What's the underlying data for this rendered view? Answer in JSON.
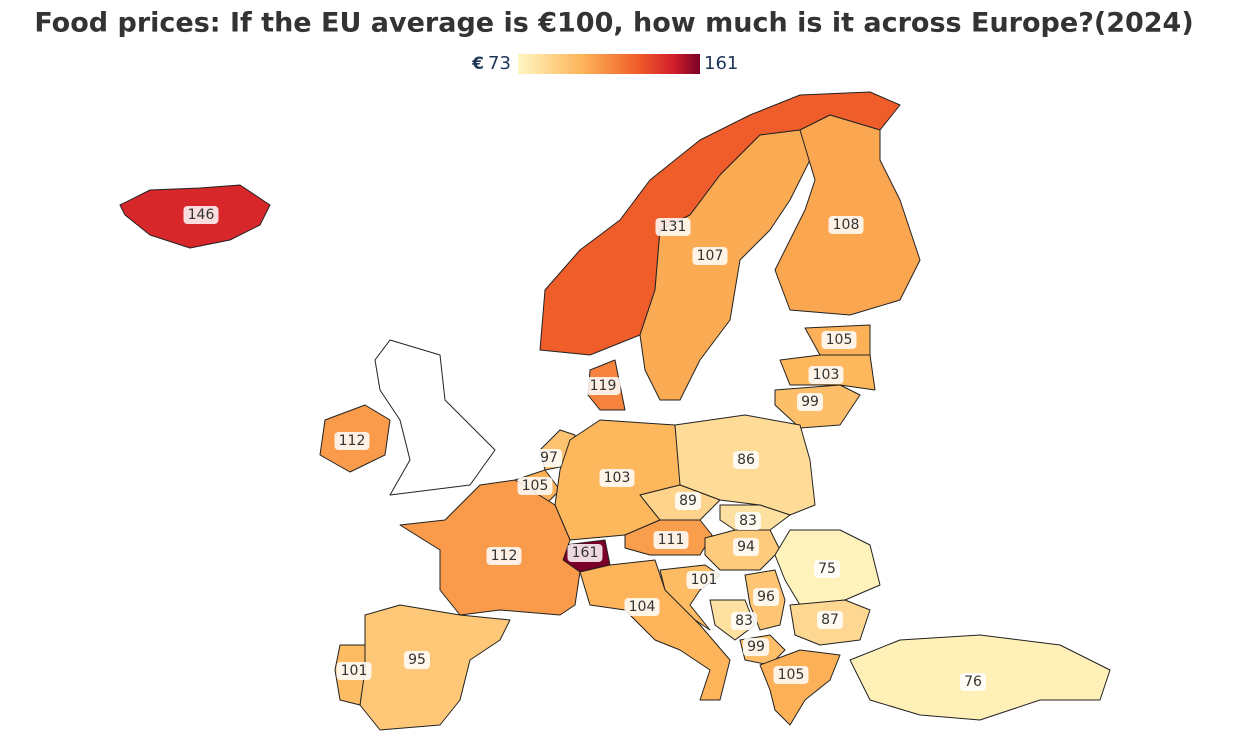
{
  "chart_data": {
    "type": "choropleth",
    "title": "Food prices: If the EU average is €100, how much is it across Europe?(2024)",
    "legend": {
      "prefix": "€",
      "min": 73,
      "max": 161
    },
    "values": [
      146,
      131,
      107,
      108,
      105,
      103,
      99,
      119,
      112,
      97,
      105,
      103,
      86,
      89,
      83,
      111,
      94,
      161,
      112,
      75,
      101,
      96,
      104,
      87,
      83,
      99,
      105,
      76,
      95,
      101
    ]
  }
}
